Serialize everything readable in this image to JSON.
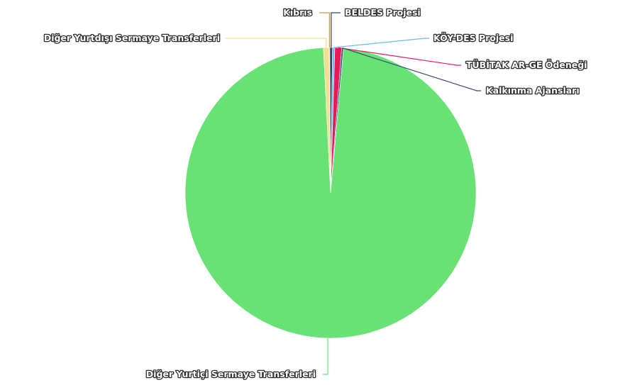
{
  "chart_data": {
    "type": "pie",
    "start_angle_deg": -0.6,
    "slices": [
      {
        "name": "Kıbrıs",
        "value": 0.08,
        "color": "#c9964b"
      },
      {
        "name": "BELDES Projesi",
        "value": 0.3,
        "color": "#33435e"
      },
      {
        "name": "KÖY-DES Projesi",
        "value": 0.25,
        "color": "#6bbbe8"
      },
      {
        "name": "TÜBİTAK AR-GE Ödeneği",
        "value": 0.75,
        "color": "#e8185a"
      },
      {
        "name": "Kalkınma Ajansları",
        "value": 0.2,
        "color": "#3a4a72"
      },
      {
        "name": "Diğer Yurtiçi Sermaye Transferleri",
        "value": 97.8,
        "color": "#69e275"
      },
      {
        "name": "Diğer Yurtdışı Sermaye Transferleri",
        "value": 0.62,
        "color": "#f3e08e"
      }
    ]
  }
}
